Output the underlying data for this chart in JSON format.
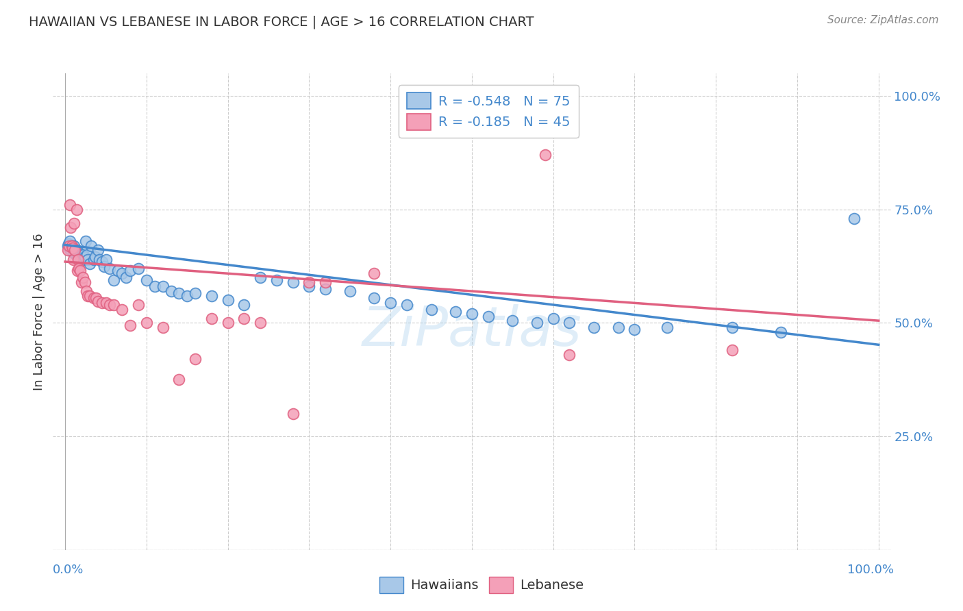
{
  "title": "HAWAIIAN VS LEBANESE IN LABOR FORCE | AGE > 16 CORRELATION CHART",
  "source": "Source: ZipAtlas.com",
  "ylabel": "In Labor Force | Age > 16",
  "hawaiians_R": "-0.548",
  "hawaiians_N": "75",
  "lebanese_R": "-0.185",
  "lebanese_N": "45",
  "hawaiians_color": "#a8c8e8",
  "lebanese_color": "#f4a0b8",
  "trendline_hawaiians_color": "#4488cc",
  "trendline_lebanese_color": "#e06080",
  "watermark": "ZiPatlas",
  "background_color": "#ffffff",
  "hawaiians_x": [
    0.003,
    0.004,
    0.005,
    0.006,
    0.007,
    0.008,
    0.009,
    0.01,
    0.011,
    0.012,
    0.013,
    0.014,
    0.015,
    0.016,
    0.017,
    0.018,
    0.019,
    0.02,
    0.021,
    0.022,
    0.023,
    0.024,
    0.025,
    0.027,
    0.028,
    0.03,
    0.032,
    0.035,
    0.037,
    0.04,
    0.042,
    0.045,
    0.048,
    0.05,
    0.055,
    0.06,
    0.065,
    0.07,
    0.075,
    0.08,
    0.09,
    0.1,
    0.11,
    0.12,
    0.13,
    0.14,
    0.15,
    0.16,
    0.18,
    0.2,
    0.22,
    0.24,
    0.26,
    0.28,
    0.3,
    0.32,
    0.35,
    0.38,
    0.4,
    0.42,
    0.45,
    0.48,
    0.5,
    0.52,
    0.55,
    0.58,
    0.6,
    0.62,
    0.65,
    0.68,
    0.7,
    0.74,
    0.82,
    0.88,
    0.97
  ],
  "hawaiians_y": [
    0.67,
    0.675,
    0.665,
    0.68,
    0.66,
    0.67,
    0.665,
    0.655,
    0.67,
    0.66,
    0.65,
    0.66,
    0.65,
    0.645,
    0.655,
    0.65,
    0.64,
    0.648,
    0.645,
    0.65,
    0.64,
    0.645,
    0.68,
    0.65,
    0.64,
    0.63,
    0.67,
    0.64,
    0.645,
    0.66,
    0.64,
    0.635,
    0.625,
    0.64,
    0.62,
    0.595,
    0.615,
    0.61,
    0.6,
    0.615,
    0.62,
    0.595,
    0.58,
    0.58,
    0.57,
    0.565,
    0.56,
    0.565,
    0.56,
    0.55,
    0.54,
    0.6,
    0.595,
    0.59,
    0.58,
    0.575,
    0.57,
    0.555,
    0.545,
    0.54,
    0.53,
    0.525,
    0.52,
    0.515,
    0.505,
    0.5,
    0.51,
    0.5,
    0.49,
    0.49,
    0.485,
    0.49,
    0.49,
    0.48,
    0.73
  ],
  "lebanese_x": [
    0.003,
    0.005,
    0.006,
    0.007,
    0.008,
    0.009,
    0.01,
    0.011,
    0.012,
    0.014,
    0.015,
    0.016,
    0.017,
    0.018,
    0.02,
    0.022,
    0.024,
    0.026,
    0.028,
    0.03,
    0.035,
    0.038,
    0.04,
    0.045,
    0.05,
    0.055,
    0.06,
    0.07,
    0.08,
    0.09,
    0.1,
    0.12,
    0.14,
    0.16,
    0.18,
    0.2,
    0.22,
    0.24,
    0.28,
    0.3,
    0.32,
    0.38,
    0.59,
    0.62,
    0.82
  ],
  "lebanese_y": [
    0.66,
    0.67,
    0.76,
    0.71,
    0.67,
    0.665,
    0.64,
    0.72,
    0.66,
    0.75,
    0.615,
    0.64,
    0.62,
    0.615,
    0.59,
    0.6,
    0.59,
    0.57,
    0.56,
    0.56,
    0.555,
    0.555,
    0.548,
    0.545,
    0.545,
    0.54,
    0.54,
    0.53,
    0.495,
    0.54,
    0.5,
    0.49,
    0.375,
    0.42,
    0.51,
    0.5,
    0.51,
    0.5,
    0.3,
    0.59,
    0.59,
    0.61,
    0.87,
    0.43,
    0.44
  ],
  "haw_trend_x0": 0.0,
  "haw_trend_y0": 0.672,
  "haw_trend_x1": 1.0,
  "haw_trend_y1": 0.452,
  "leb_trend_x0": 0.0,
  "leb_trend_y0": 0.635,
  "leb_trend_x1": 1.0,
  "leb_trend_y1": 0.505,
  "ytick_vals": [
    0.0,
    0.25,
    0.5,
    0.75,
    1.0
  ],
  "ytick_labels": [
    "",
    "25.0%",
    "50.0%",
    "75.0%",
    "100.0%"
  ],
  "xlim": [
    -0.015,
    1.015
  ],
  "ylim": [
    0.0,
    1.05
  ]
}
